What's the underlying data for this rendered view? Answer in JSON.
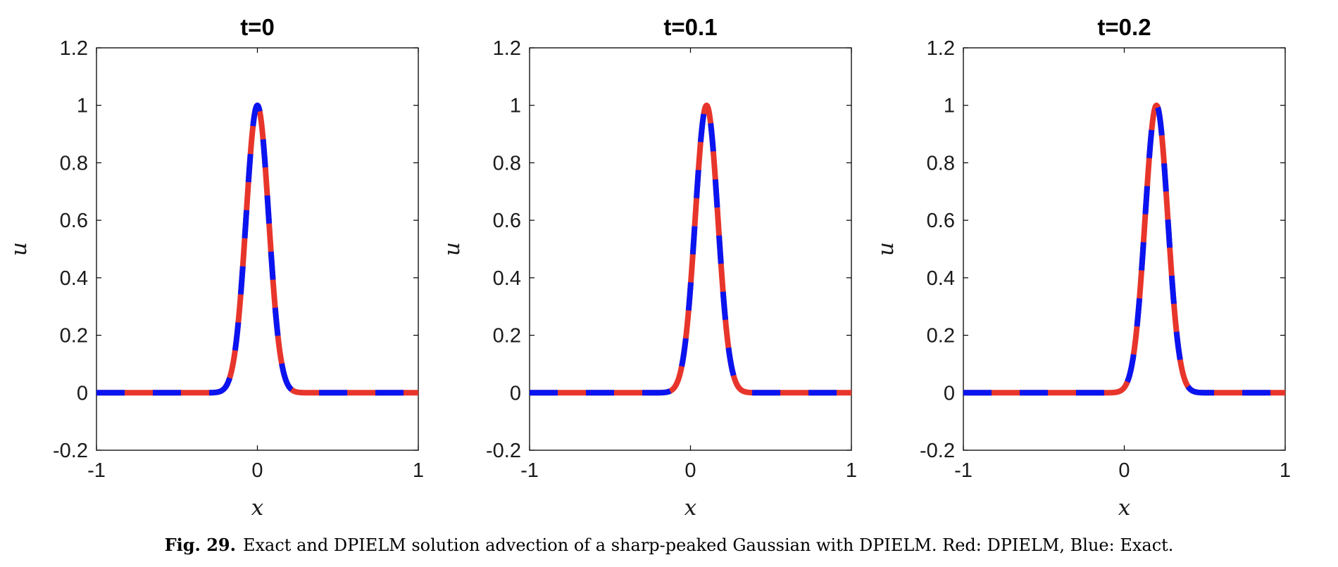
{
  "chart_data": [
    {
      "type": "line",
      "title": "t=0",
      "xlabel": "x",
      "ylabel": "u",
      "xlim": [
        -1,
        1
      ],
      "ylim": [
        -0.2,
        1.2
      ],
      "xticks": [
        "-1",
        "0",
        "1"
      ],
      "yticks": [
        "-0.2",
        "0",
        "0.2",
        "0.4",
        "0.6",
        "0.8",
        "1",
        "1.2"
      ],
      "series": [
        {
          "name": "DPIELM",
          "center": 0.0,
          "width": 0.1,
          "peak": 1.0,
          "color": "#e8352b"
        },
        {
          "name": "Exact",
          "center": 0.0,
          "width": 0.1,
          "peak": 1.0,
          "color": "#0a14f0"
        }
      ]
    },
    {
      "type": "line",
      "title": "t=0.1",
      "xlabel": "x",
      "ylabel": "u",
      "xlim": [
        -1,
        1
      ],
      "ylim": [
        -0.2,
        1.2
      ],
      "xticks": [
        "-1",
        "0",
        "1"
      ],
      "yticks": [
        "-0.2",
        "0",
        "0.2",
        "0.4",
        "0.6",
        "0.8",
        "1",
        "1.2"
      ],
      "series": [
        {
          "name": "DPIELM",
          "center": 0.1,
          "width": 0.1,
          "peak": 1.0,
          "color": "#e8352b"
        },
        {
          "name": "Exact",
          "center": 0.1,
          "width": 0.1,
          "peak": 1.0,
          "color": "#0a14f0"
        }
      ]
    },
    {
      "type": "line",
      "title": "t=0.2",
      "xlabel": "x",
      "ylabel": "u",
      "xlim": [
        -1,
        1
      ],
      "ylim": [
        -0.2,
        1.2
      ],
      "xticks": [
        "-1",
        "0",
        "1"
      ],
      "yticks": [
        "-0.2",
        "0",
        "0.2",
        "0.4",
        "0.6",
        "0.8",
        "1",
        "1.2"
      ],
      "series": [
        {
          "name": "DPIELM",
          "center": 0.2,
          "width": 0.1,
          "peak": 1.0,
          "color": "#e8352b"
        },
        {
          "name": "Exact",
          "center": 0.2,
          "width": 0.1,
          "peak": 1.0,
          "color": "#0a14f0"
        }
      ]
    }
  ],
  "caption": {
    "label": "Fig. 29.",
    "text": "Exact and DPIELM solution advection of a sharp-peaked Gaussian with DPIELM. Red: DPIELM, Blue: Exact."
  }
}
